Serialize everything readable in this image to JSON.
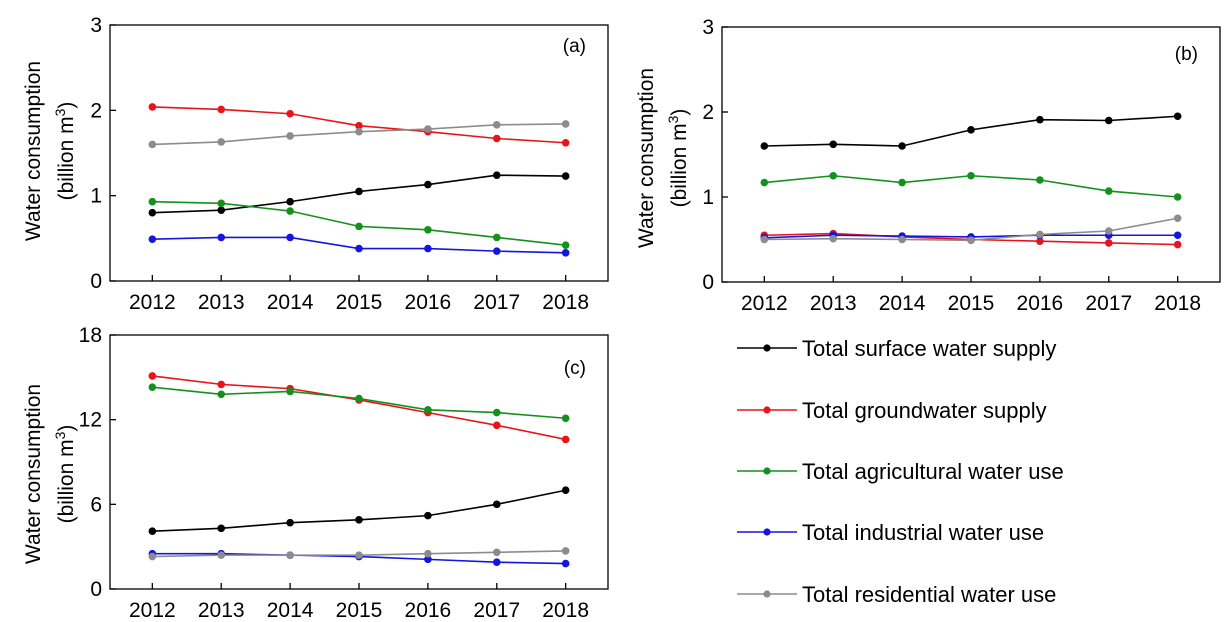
{
  "chart_data": [
    {
      "type": "line",
      "panel_label": "(a)",
      "ylabel": "Water consumption",
      "ylabel_unit_prefix": "(billion m",
      "ylabel_unit_sup": "3",
      "ylabel_unit_suffix": ")",
      "ylim": [
        0,
        3
      ],
      "yticks": [
        "0",
        "1",
        "2",
        "3"
      ],
      "categories": [
        "2012",
        "2013",
        "2014",
        "2015",
        "2016",
        "2017",
        "2018"
      ],
      "series": [
        {
          "name": "Total surface water supply",
          "values": [
            0.8,
            0.83,
            0.93,
            1.05,
            1.13,
            1.24,
            1.23
          ]
        },
        {
          "name": "Total groundwater supply",
          "values": [
            2.04,
            2.01,
            1.96,
            1.82,
            1.75,
            1.67,
            1.62
          ]
        },
        {
          "name": "Total agricultural water use",
          "values": [
            0.93,
            0.91,
            0.82,
            0.64,
            0.6,
            0.51,
            0.42
          ]
        },
        {
          "name": "Total industrial water use",
          "values": [
            0.49,
            0.51,
            0.51,
            0.38,
            0.38,
            0.35,
            0.33
          ]
        },
        {
          "name": "Total residential water use",
          "values": [
            1.6,
            1.63,
            1.7,
            1.75,
            1.78,
            1.83,
            1.84
          ]
        }
      ]
    },
    {
      "type": "line",
      "panel_label": "(b)",
      "ylabel": "Water consumption",
      "ylabel_unit_prefix": "(billion m",
      "ylabel_unit_sup": "3",
      "ylabel_unit_suffix": ")",
      "ylim": [
        0,
        3
      ],
      "yticks": [
        "0",
        "1",
        "2",
        "3"
      ],
      "categories": [
        "2012",
        "2013",
        "2014",
        "2015",
        "2016",
        "2017",
        "2018"
      ],
      "series": [
        {
          "name": "Total surface water supply",
          "values": [
            1.6,
            1.62,
            1.6,
            1.79,
            1.91,
            1.9,
            1.95
          ]
        },
        {
          "name": "Total groundwater supply",
          "values": [
            0.55,
            0.57,
            0.53,
            0.5,
            0.48,
            0.46,
            0.44
          ]
        },
        {
          "name": "Total agricultural water use",
          "values": [
            1.17,
            1.25,
            1.17,
            1.25,
            1.2,
            1.07,
            1.0
          ]
        },
        {
          "name": "Total industrial water use",
          "values": [
            0.52,
            0.55,
            0.54,
            0.53,
            0.55,
            0.55,
            0.55
          ]
        },
        {
          "name": "Total residential water use",
          "values": [
            0.5,
            0.51,
            0.5,
            0.49,
            0.56,
            0.6,
            0.75
          ]
        }
      ]
    },
    {
      "type": "line",
      "panel_label": "(c)",
      "ylabel": "Water consumption",
      "ylabel_unit_prefix": "(billion m",
      "ylabel_unit_sup": "3",
      "ylabel_unit_suffix": ")",
      "ylim": [
        0,
        18
      ],
      "yticks": [
        "0",
        "6",
        "12",
        "18"
      ],
      "categories": [
        "2012",
        "2013",
        "2014",
        "2015",
        "2016",
        "2017",
        "2018"
      ],
      "series": [
        {
          "name": "Total surface water supply",
          "values": [
            4.1,
            4.3,
            4.7,
            4.9,
            5.2,
            6.0,
            7.0
          ]
        },
        {
          "name": "Total groundwater supply",
          "values": [
            15.1,
            14.5,
            14.2,
            13.4,
            12.5,
            11.6,
            10.6
          ]
        },
        {
          "name": "Total agricultural water use",
          "values": [
            14.3,
            13.8,
            14.0,
            13.5,
            12.7,
            12.5,
            12.1
          ]
        },
        {
          "name": "Total industrial water use",
          "values": [
            2.5,
            2.5,
            2.4,
            2.3,
            2.1,
            1.9,
            1.8
          ]
        },
        {
          "name": "Total residential water use",
          "values": [
            2.3,
            2.4,
            2.4,
            2.4,
            2.5,
            2.6,
            2.7
          ]
        }
      ]
    }
  ],
  "legend": [
    {
      "label": "Total surface water supply",
      "color": "#000000"
    },
    {
      "label": "Total groundwater supply",
      "color": "#e8141b"
    },
    {
      "label": "Total agricultural water use",
      "color": "#12911c"
    },
    {
      "label": "Total industrial water use",
      "color": "#1515e0"
    },
    {
      "label": "Total residential water use",
      "color": "#8c8c8c"
    }
  ]
}
